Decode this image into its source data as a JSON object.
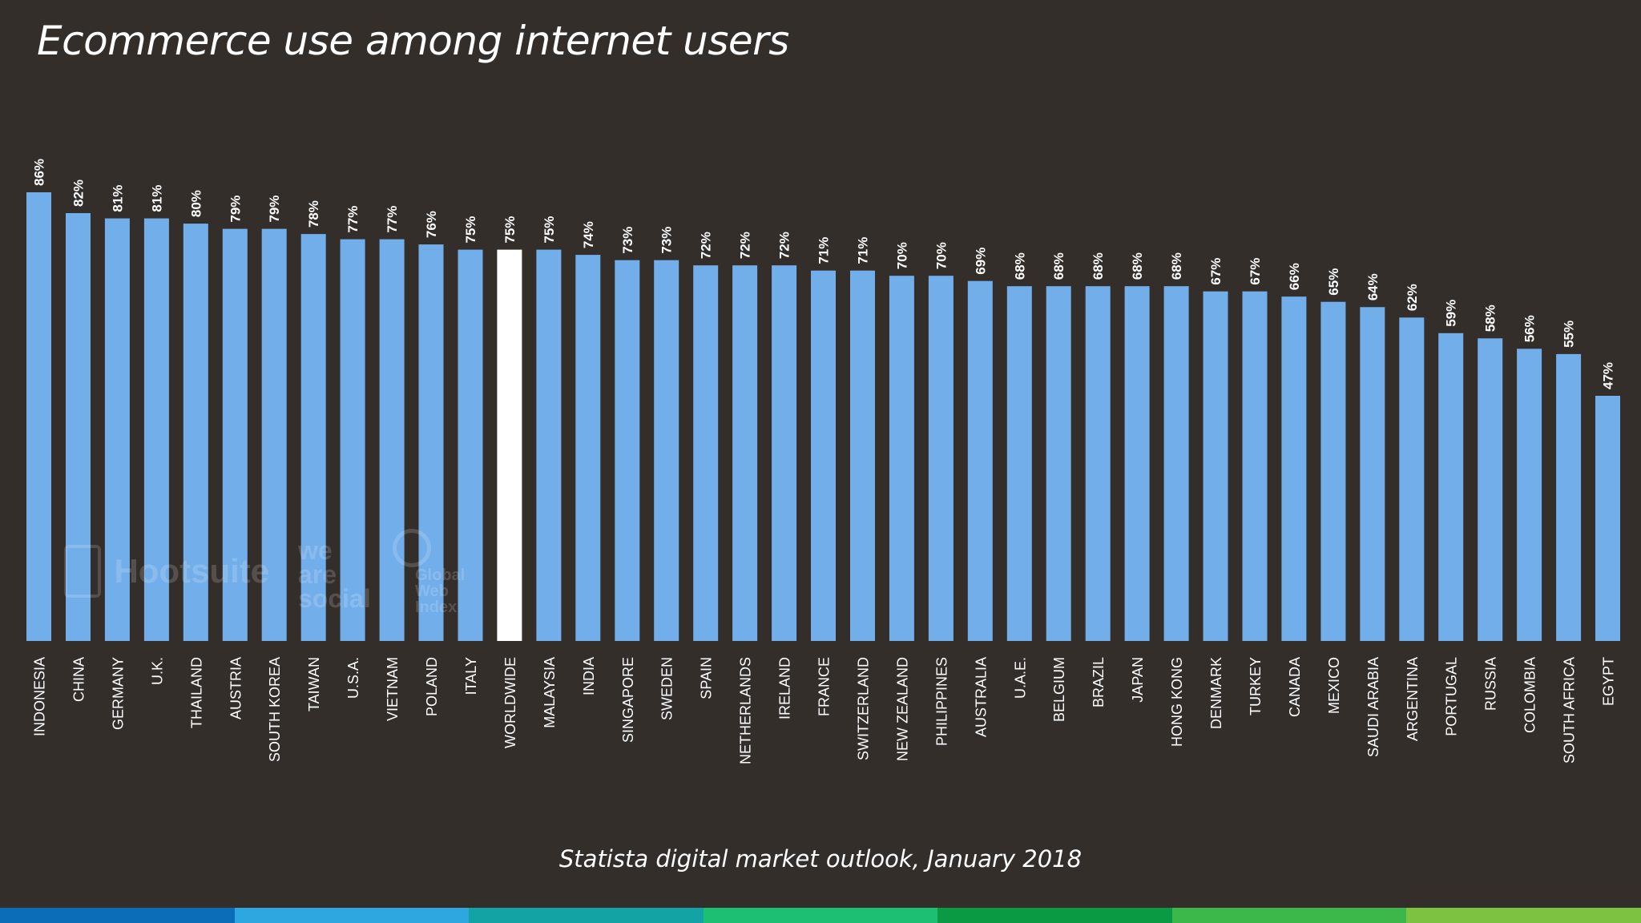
{
  "title": "Ecommerce use among internet users",
  "source": "Statista digital market outlook, January 2018",
  "watermarks": {
    "hootsuite": "Hootsuite",
    "we_are_social": [
      "we",
      "are",
      "social"
    ],
    "global_web_index": [
      "Global",
      "Web",
      "Index"
    ]
  },
  "colors": {
    "background": "#342e2b",
    "bar": "#72aeea",
    "highlight_bar": "#ffffff",
    "text": "#ffffff",
    "footer_stripes": [
      "#0b6cb7",
      "#2ea6e0",
      "#13a3a5",
      "#1dbf73",
      "#0a9a44",
      "#3cb84a",
      "#7ec242"
    ]
  },
  "chart_data": {
    "type": "bar",
    "title": "Ecommerce use among internet users",
    "xlabel": "",
    "ylabel": "",
    "ylim": [
      0,
      86
    ],
    "grid": false,
    "highlight": "WORLDWIDE",
    "categories": [
      "INDONESIA",
      "CHINA",
      "GERMANY",
      "U.K.",
      "THAILAND",
      "AUSTRIA",
      "SOUTH KOREA",
      "TAIWAN",
      "U.S.A.",
      "VIETNAM",
      "POLAND",
      "ITALY",
      "WORLDWIDE",
      "MALAYSIA",
      "INDIA",
      "SINGAPORE",
      "SWEDEN",
      "SPAIN",
      "NETHERLANDS",
      "IRELAND",
      "FRANCE",
      "SWITZERLAND",
      "NEW ZEALAND",
      "PHILIPPINES",
      "AUSTRALIA",
      "U.A.E.",
      "BELGIUM",
      "BRAZIL",
      "JAPAN",
      "HONG KONG",
      "DENMARK",
      "TURKEY",
      "CANADA",
      "MEXICO",
      "SAUDI ARABIA",
      "ARGENTINA",
      "PORTUGAL",
      "RUSSIA",
      "COLOMBIA",
      "SOUTH AFRICA",
      "EGYPT"
    ],
    "values": [
      86,
      82,
      81,
      81,
      80,
      79,
      79,
      78,
      77,
      77,
      76,
      75,
      75,
      75,
      74,
      73,
      73,
      72,
      72,
      72,
      71,
      71,
      70,
      70,
      69,
      68,
      68,
      68,
      68,
      68,
      67,
      67,
      66,
      65,
      64,
      62,
      59,
      58,
      56,
      55,
      47
    ],
    "labels": [
      "86%",
      "82%",
      "81%",
      "81%",
      "80%",
      "79%",
      "79%",
      "78%",
      "77%",
      "77%",
      "76%",
      "75%",
      "75%",
      "75%",
      "74%",
      "73%",
      "73%",
      "72%",
      "72%",
      "72%",
      "71%",
      "71%",
      "70%",
      "70%",
      "69%",
      "68%",
      "68%",
      "68%",
      "68%",
      "68%",
      "67%",
      "67%",
      "66%",
      "65%",
      "64%",
      "62%",
      "59%",
      "58%",
      "56%",
      "55%",
      "47%"
    ]
  }
}
